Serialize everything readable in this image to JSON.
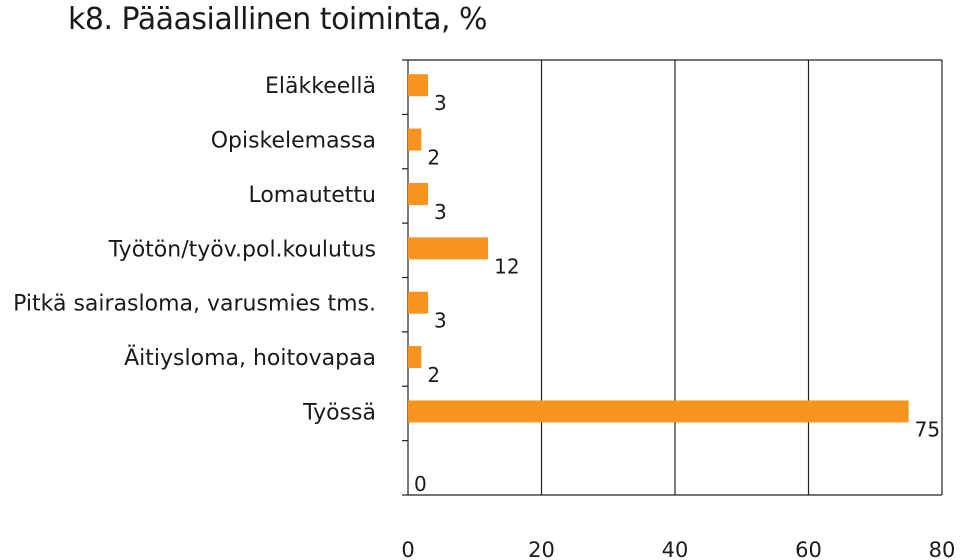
{
  "chart_data": {
    "type": "bar",
    "orientation": "horizontal",
    "title": "k8. Pääasiallinen toiminta, %",
    "categories": [
      "Eläkkeellä",
      "Opiskelemassa",
      "Lomautettu",
      "Työtön/työv.pol.koulutus",
      "Pitkä sairasloma, varusmies tms.",
      "Äitiysloma, hoitovapaa",
      "Työssä",
      ""
    ],
    "values": [
      3,
      2,
      3,
      12,
      3,
      2,
      75,
      0
    ],
    "data_labels": [
      "3",
      "2",
      "3",
      "12",
      "3",
      "2",
      "75",
      "0"
    ],
    "xlim": [
      0,
      80
    ],
    "xticks": [
      "0",
      "20",
      "40",
      "60",
      "80"
    ],
    "grid": "vertical",
    "legend": "none",
    "bar_color": "#f7941d"
  }
}
